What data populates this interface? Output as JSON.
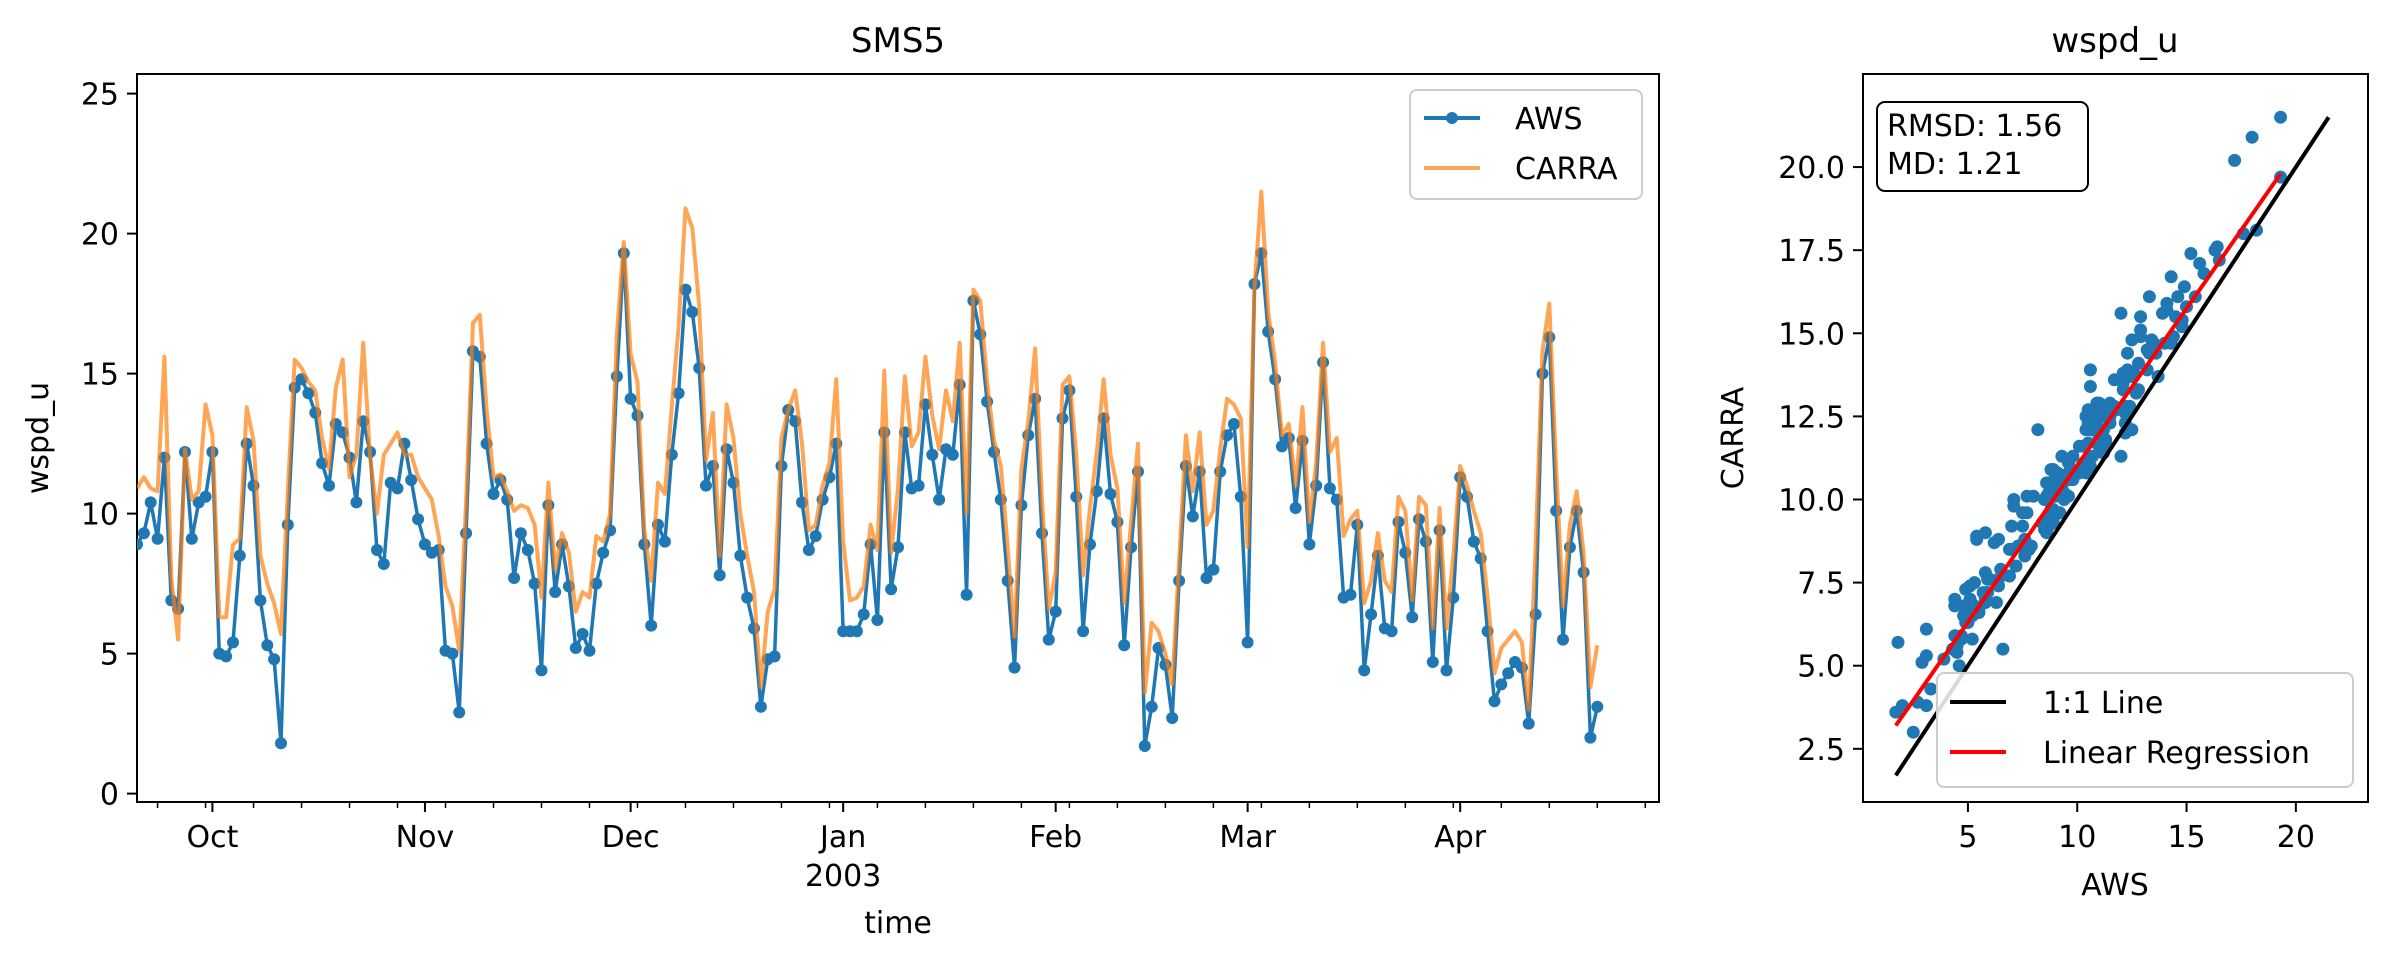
{
  "chart_data": [
    {
      "type": "line",
      "title": "SMS5",
      "xlabel": "time",
      "ylabel": "wspd_u",
      "ylim": [
        -0.3,
        25.7
      ],
      "yticks": [
        0,
        5,
        10,
        15,
        20,
        25
      ],
      "x_range": [
        "2002-09-20",
        "2003-04-30"
      ],
      "xticks": [
        {
          "date": "2002-10-01",
          "label": "Oct",
          "sublabel": ""
        },
        {
          "date": "2002-11-01",
          "label": "Nov",
          "sublabel": ""
        },
        {
          "date": "2002-12-01",
          "label": "Dec",
          "sublabel": ""
        },
        {
          "date": "2003-01-01",
          "label": "Jan",
          "sublabel": "2003"
        },
        {
          "date": "2003-02-01",
          "label": "Feb",
          "sublabel": ""
        },
        {
          "date": "2003-03-01",
          "label": "Mar",
          "sublabel": ""
        },
        {
          "date": "2003-04-01",
          "label": "Apr",
          "sublabel": ""
        }
      ],
      "legend_position": "top-right",
      "grid": false,
      "series": [
        {
          "name": "AWS",
          "color": "#1f77b4",
          "marker": "circle",
          "start_date": "2002-09-20",
          "values": [
            8.9,
            9.3,
            10.4,
            9.1,
            12.0,
            6.9,
            6.6,
            12.2,
            9.1,
            10.4,
            10.6,
            12.2,
            5.0,
            4.9,
            5.4,
            8.5,
            12.5,
            11.0,
            6.9,
            5.3,
            4.8,
            1.8,
            9.6,
            14.5,
            14.8,
            14.3,
            13.6,
            11.8,
            11.0,
            13.2,
            12.9,
            12.0,
            10.4,
            13.3,
            12.2,
            8.7,
            8.2,
            11.1,
            10.9,
            12.5,
            11.2,
            9.8,
            8.9,
            8.6,
            8.7,
            5.1,
            5.0,
            2.9,
            9.3,
            15.8,
            15.6,
            12.5,
            10.7,
            11.2,
            10.5,
            7.7,
            9.3,
            8.7,
            7.5,
            4.4,
            10.3,
            7.2,
            8.9,
            7.4,
            5.2,
            5.7,
            5.1,
            7.5,
            8.6,
            9.4,
            14.9,
            19.3,
            14.1,
            13.5,
            8.9,
            6.0,
            9.6,
            9.0,
            12.1,
            14.3,
            18.0,
            17.2,
            15.2,
            11.0,
            11.7,
            7.8,
            12.3,
            11.1,
            8.5,
            7.0,
            5.9,
            3.1,
            4.8,
            4.9,
            11.7,
            13.7,
            13.3,
            10.4,
            8.7,
            9.2,
            10.5,
            11.3,
            12.5,
            5.8,
            5.8,
            5.8,
            6.4,
            8.9,
            6.2,
            12.9,
            7.3,
            8.8,
            12.9,
            10.9,
            11.0,
            13.9,
            12.1,
            10.5,
            12.3,
            12.1,
            14.6,
            7.1,
            17.6,
            16.4,
            14.0,
            12.2,
            10.5,
            7.6,
            4.5,
            10.3,
            12.8,
            14.1,
            9.3,
            5.5,
            6.5,
            13.4,
            14.4,
            10.6,
            5.8,
            8.9,
            10.8,
            13.4,
            10.7,
            9.7,
            5.3,
            8.8,
            11.5,
            1.7,
            3.1,
            5.2,
            4.6,
            2.7,
            7.6,
            11.7,
            9.9,
            11.5,
            7.7,
            8.0,
            11.5,
            12.8,
            13.2,
            10.6,
            5.4,
            18.2,
            19.3,
            16.5,
            14.8,
            12.4,
            12.7,
            10.2,
            12.6,
            8.9,
            11.0,
            15.4,
            10.9,
            10.5,
            7.0,
            7.1,
            9.6,
            4.4,
            6.4,
            8.5,
            5.9,
            5.8,
            9.7,
            8.6,
            6.3,
            9.8,
            9.0,
            4.7,
            9.4,
            4.4,
            7.0,
            11.3,
            10.6,
            9.0,
            8.4,
            5.8,
            3.3,
            3.9,
            4.3,
            4.7,
            4.5,
            2.5,
            6.4,
            15.0,
            16.3,
            10.1,
            5.5,
            8.8,
            10.1,
            7.9,
            2.0,
            3.1
          ]
        },
        {
          "name": "CARRA",
          "color": "#ff7f0e",
          "marker": "none",
          "start_date": "2002-09-20",
          "values": [
            10.9,
            11.3,
            10.9,
            10.8,
            15.6,
            7.7,
            5.5,
            12.3,
            10.5,
            10.8,
            13.9,
            12.8,
            6.3,
            6.3,
            8.9,
            9.1,
            13.8,
            12.6,
            8.5,
            7.5,
            6.8,
            5.7,
            10.8,
            15.5,
            15.2,
            14.7,
            14.4,
            12.7,
            11.6,
            14.5,
            15.5,
            11.3,
            12.1,
            16.1,
            12.0,
            10.0,
            12.1,
            12.5,
            12.9,
            12.1,
            12.1,
            11.3,
            10.9,
            10.5,
            9.2,
            7.4,
            6.7,
            5.1,
            10.4,
            16.8,
            17.1,
            13.7,
            11.3,
            11.4,
            10.8,
            10.1,
            10.3,
            10.2,
            9.6,
            7.0,
            11.1,
            8.0,
            9.3,
            8.6,
            6.5,
            7.2,
            7.0,
            9.2,
            9.0,
            10.0,
            16.4,
            19.7,
            15.7,
            14.7,
            9.4,
            7.6,
            11.1,
            10.7,
            13.8,
            16.7,
            20.9,
            20.2,
            17.4,
            11.9,
            13.6,
            8.5,
            13.9,
            12.7,
            10.0,
            8.5,
            7.2,
            3.8,
            6.5,
            7.3,
            12.7,
            13.7,
            14.4,
            12.5,
            9.4,
            9.6,
            11.0,
            11.8,
            14.8,
            9.0,
            6.9,
            7.0,
            7.4,
            9.6,
            8.7,
            15.1,
            8.6,
            10.9,
            14.9,
            12.4,
            12.9,
            15.6,
            13.5,
            12.3,
            14.4,
            13.3,
            16.1,
            10.0,
            18.0,
            17.6,
            14.7,
            12.6,
            11.7,
            8.8,
            5.6,
            11.6,
            13.3,
            15.9,
            10.5,
            6.6,
            7.9,
            14.6,
            14.9,
            12.1,
            7.8,
            10.2,
            12.2,
            14.8,
            12.1,
            10.9,
            6.8,
            9.7,
            12.5,
            3.6,
            6.1,
            5.8,
            5.0,
            3.9,
            8.3,
            12.8,
            10.8,
            12.9,
            9.6,
            10.1,
            12.3,
            14.1,
            13.9,
            13.4,
            8.8,
            18.1,
            21.5,
            17.2,
            15.4,
            12.8,
            13.2,
            11.0,
            13.8,
            9.7,
            11.8,
            16.1,
            12.2,
            12.7,
            9.2,
            9.8,
            10.1,
            6.8,
            7.6,
            9.3,
            7.6,
            7.2,
            10.6,
            10.1,
            6.9,
            10.6,
            10.3,
            5.9,
            10.2,
            5.9,
            8.5,
            11.7,
            11.0,
            10.1,
            9.3,
            7.0,
            4.3,
            5.2,
            5.5,
            5.8,
            5.4,
            3.0,
            8.8,
            15.8,
            17.5,
            11.6,
            6.7,
            9.6,
            10.8,
            8.6,
            3.8,
            5.3
          ]
        }
      ]
    },
    {
      "type": "scatter",
      "title": "wspd_u",
      "xlabel": "AWS",
      "ylabel": "CARRA",
      "xlim": [
        0.2,
        23.3
      ],
      "ylim": [
        0.9,
        22.8
      ],
      "xticks": [
        5,
        10,
        15,
        20
      ],
      "yticks": [
        2.5,
        5.0,
        7.5,
        10.0,
        12.5,
        15.0,
        17.5,
        20.0
      ],
      "stats_text": [
        "RMSD: 1.56",
        "MD: 1.21"
      ],
      "legend_position": "bottom-right",
      "grid": false,
      "points_color": "#1f77b4",
      "points_source": "pairs of the AWS and CARRA series of the time-series chart",
      "lines": [
        {
          "name": "1:1 Line",
          "color": "#000000",
          "x": [
            1.7,
            21.5
          ],
          "y": [
            1.7,
            21.5
          ]
        },
        {
          "name": "Linear Regression",
          "color": "#ff0000",
          "x": [
            1.7,
            19.3
          ],
          "y": [
            3.2,
            19.8
          ]
        }
      ]
    }
  ]
}
